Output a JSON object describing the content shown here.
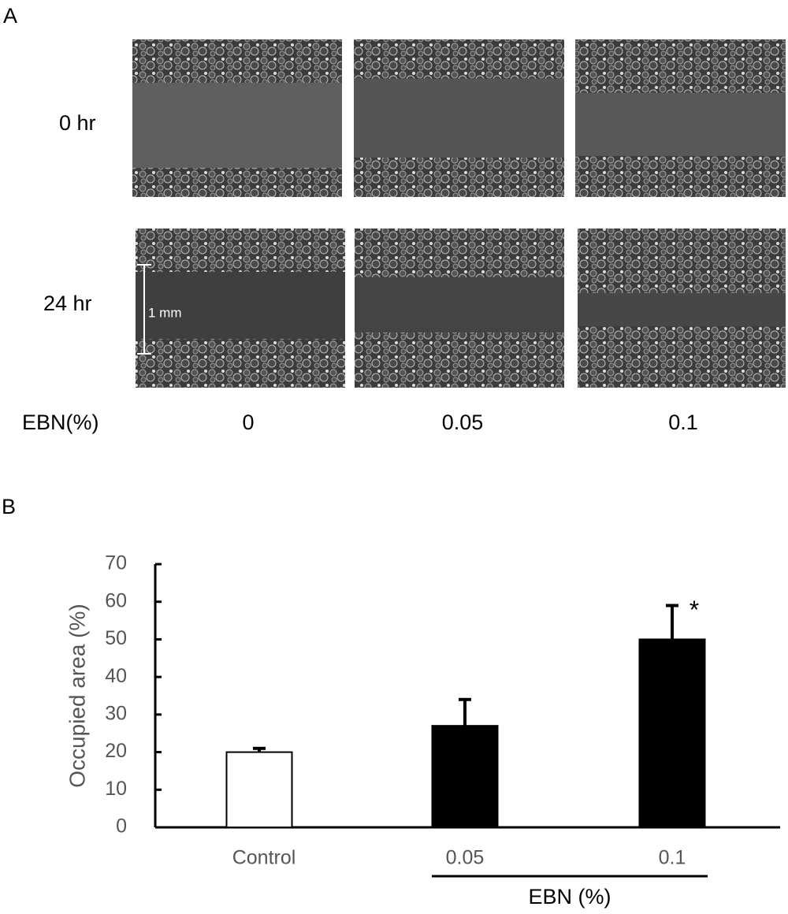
{
  "panel_a": {
    "label": "A",
    "rows": [
      "0 hr",
      "24 hr"
    ],
    "scale_label": "1 mm",
    "axis_label": "EBN(%)",
    "columns": [
      "0",
      "0.05",
      "0.1"
    ]
  },
  "chart_data": {
    "type": "bar",
    "panel_label": "B",
    "ylabel": "Occupied area (%)",
    "categories": [
      "Control",
      "0.05",
      "0.1"
    ],
    "values": [
      20,
      27,
      50
    ],
    "errors": [
      1,
      7,
      9
    ],
    "colors": [
      "#ffffff",
      "#000000",
      "#000000"
    ],
    "edge_color": "#000000",
    "annotations": [
      null,
      null,
      "*"
    ],
    "group_label": "EBN (%)",
    "ylim": [
      0,
      70
    ],
    "yticks": [
      0,
      10,
      20,
      30,
      40,
      50,
      60,
      70
    ],
    "grid": false
  }
}
